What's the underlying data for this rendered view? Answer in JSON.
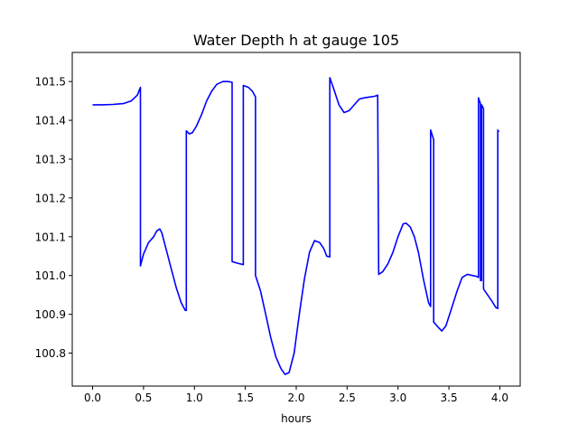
{
  "chart_data": {
    "type": "line",
    "title": "Water Depth h at gauge 105",
    "xlabel": "hours",
    "ylabel": "",
    "xlim": [
      -0.2,
      4.2
    ],
    "ylim": [
      100.715,
      101.575
    ],
    "xticks": [
      0.0,
      0.5,
      1.0,
      1.5,
      2.0,
      2.5,
      3.0,
      3.5,
      4.0
    ],
    "xtick_labels": [
      "0.0",
      "0.5",
      "1.0",
      "1.5",
      "2.0",
      "2.5",
      "3.0",
      "3.5",
      "4.0"
    ],
    "yticks": [
      100.8,
      100.9,
      101.0,
      101.1,
      101.2,
      101.3,
      101.4,
      101.5
    ],
    "ytick_labels": [
      "100.8",
      "100.9",
      "101.0",
      "101.1",
      "101.2",
      "101.3",
      "101.4",
      "101.5"
    ],
    "grid": false,
    "legend": "none",
    "series": [
      {
        "color": "#0000ff",
        "x": [
          0.0,
          0.1,
          0.2,
          0.3,
          0.38,
          0.44,
          0.47,
          0.47,
          0.5,
          0.55,
          0.6,
          0.63,
          0.66,
          0.68,
          0.72,
          0.77,
          0.82,
          0.87,
          0.91,
          0.92,
          0.92,
          0.95,
          0.98,
          1.02,
          1.07,
          1.12,
          1.17,
          1.22,
          1.28,
          1.33,
          1.37,
          1.37,
          1.42,
          1.48,
          1.48,
          1.53,
          1.57,
          1.6,
          1.6,
          1.65,
          1.7,
          1.75,
          1.8,
          1.85,
          1.89,
          1.93,
          1.98,
          2.03,
          2.08,
          2.13,
          2.18,
          2.23,
          2.27,
          2.3,
          2.33,
          2.33,
          2.37,
          2.42,
          2.47,
          2.52,
          2.57,
          2.62,
          2.67,
          2.72,
          2.77,
          2.8,
          2.81,
          2.85,
          2.9,
          2.95,
          3.0,
          3.05,
          3.08,
          3.12,
          3.16,
          3.2,
          3.25,
          3.3,
          3.32,
          3.32,
          3.35,
          3.35,
          3.4,
          3.43,
          3.47,
          3.52,
          3.58,
          3.63,
          3.68,
          3.73,
          3.77,
          3.79,
          3.79,
          3.81,
          3.81,
          3.82,
          3.82,
          3.84,
          3.84,
          3.88,
          3.92,
          3.96,
          3.98,
          3.98,
          3.99
        ],
        "y": [
          101.44,
          101.44,
          101.441,
          101.443,
          101.45,
          101.465,
          101.485,
          101.025,
          101.055,
          101.085,
          101.1,
          101.115,
          101.12,
          101.11,
          101.07,
          101.02,
          100.97,
          100.93,
          100.91,
          100.91,
          101.373,
          101.365,
          101.368,
          101.385,
          101.415,
          101.45,
          101.475,
          101.493,
          101.5,
          101.5,
          101.498,
          101.036,
          101.032,
          101.028,
          101.49,
          101.485,
          101.475,
          101.46,
          101.0,
          100.96,
          100.9,
          100.84,
          100.79,
          100.76,
          100.745,
          100.75,
          100.8,
          100.9,
          100.99,
          101.06,
          101.09,
          101.085,
          101.07,
          101.05,
          101.048,
          101.51,
          101.48,
          101.44,
          101.42,
          101.425,
          101.44,
          101.455,
          101.458,
          101.46,
          101.462,
          101.465,
          101.003,
          101.01,
          101.03,
          101.06,
          101.1,
          101.133,
          101.135,
          101.125,
          101.1,
          101.06,
          100.99,
          100.93,
          100.92,
          101.375,
          101.35,
          100.88,
          100.865,
          100.857,
          100.87,
          100.91,
          100.96,
          100.995,
          101.003,
          101.0,
          100.998,
          100.995,
          101.458,
          101.443,
          100.987,
          100.987,
          101.44,
          101.43,
          100.965,
          100.95,
          100.935,
          100.918,
          100.915,
          101.375,
          101.37
        ]
      }
    ]
  }
}
